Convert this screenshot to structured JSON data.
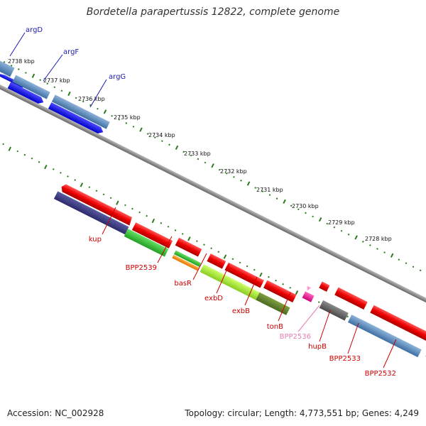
{
  "title": "Bordetella parapertussis 12822, complete genome",
  "accession": "Accession: NC_002928",
  "stats": "Topology: circular; Length: 4,773,551 bp; Genes: 4,249",
  "colors": {
    "backbone": "#8c8c8c",
    "tick": "#2a7d1a",
    "forward_label": "#1a1ab0",
    "reverse_label": "#cc0000",
    "light_label": "#e37fb5"
  },
  "kbp_labels": [
    "2738 kbp",
    "2737 kbp",
    "2736 kbp",
    "2735 kbp",
    "2734 kbp",
    "2733 kbp",
    "2732 kbp",
    "2731 kbp",
    "2730 kbp",
    "2729 kbp",
    "2728 kbp"
  ],
  "forward_genes": [
    {
      "name": "argD"
    },
    {
      "name": "argF"
    },
    {
      "name": "argG"
    }
  ],
  "reverse_genes": [
    {
      "name": "kup"
    },
    {
      "name": "BPP2539"
    },
    {
      "name": "basR"
    },
    {
      "name": "exbD"
    },
    {
      "name": "exbB"
    },
    {
      "name": "tonB"
    },
    {
      "name": "BPP2536"
    },
    {
      "name": "hupB"
    },
    {
      "name": "BPP2533"
    },
    {
      "name": "BPP2532"
    }
  ]
}
